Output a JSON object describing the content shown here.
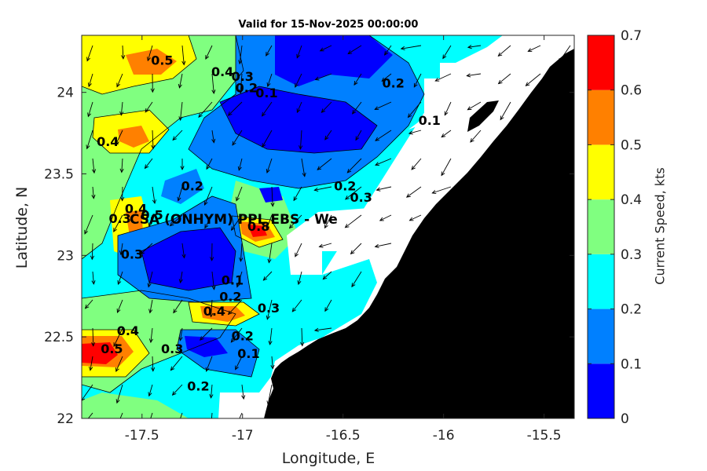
{
  "map": {
    "title": "Valid for 15-Nov-2025 00:00:00",
    "x_label": "Longitude, E",
    "y_label": "Latitude, N",
    "colorbar_label": "Current Speed, kts",
    "site_label": "CSA (ONHYM) PPL EBS - We",
    "lon_range": [
      -17.8,
      -15.35
    ],
    "lat_range": [
      22.0,
      24.35
    ],
    "x_ticks": [
      -17.5,
      -17,
      -16.5,
      -16,
      -15.5
    ],
    "x_tick_labels": [
      "-17.5",
      "-17",
      "-16.5",
      "-16",
      "-15.5"
    ],
    "y_ticks": [
      22,
      22.5,
      23,
      23.5,
      24
    ],
    "y_tick_labels": [
      "22",
      "22.5",
      "23",
      "23.5",
      "24"
    ],
    "colorbar_levels": [
      0,
      0.1,
      0.2,
      0.3,
      0.4,
      0.5,
      0.6,
      0.7
    ],
    "colorbar_tick_labels": [
      "0",
      "0.1",
      "0.2",
      "0.3",
      "0.4",
      "0.5",
      "0.6",
      "0.7"
    ],
    "colorbar_colors": [
      "#0000ff",
      "#0080ff",
      "#00ffff",
      "#80ff80",
      "#ffff00",
      "#ff8000",
      "#ff0000"
    ],
    "land_color": "#000000",
    "contour_labels": [
      {
        "text": "0.5",
        "lon": -17.4,
        "lat": 24.17
      },
      {
        "text": "0.4",
        "lon": -17.1,
        "lat": 24.1
      },
      {
        "text": "0.3",
        "lon": -17.0,
        "lat": 24.07
      },
      {
        "text": "0.2",
        "lon": -16.98,
        "lat": 24.0
      },
      {
        "text": "0.1",
        "lon": -16.88,
        "lat": 23.97
      },
      {
        "text": "0.2",
        "lon": -16.25,
        "lat": 24.03
      },
      {
        "text": "0.1",
        "lon": -16.07,
        "lat": 23.8
      },
      {
        "text": "0.4",
        "lon": -17.67,
        "lat": 23.67
      },
      {
        "text": "0.2",
        "lon": -17.25,
        "lat": 23.4
      },
      {
        "text": "0.2",
        "lon": -16.49,
        "lat": 23.4
      },
      {
        "text": "0.3",
        "lon": -16.41,
        "lat": 23.33
      },
      {
        "text": "0.3",
        "lon": -17.61,
        "lat": 23.2
      },
      {
        "text": "0.4",
        "lon": -17.53,
        "lat": 23.26
      },
      {
        "text": "0.5",
        "lon": -17.45,
        "lat": 23.22
      },
      {
        "text": "0.8",
        "lon": -16.92,
        "lat": 23.15
      },
      {
        "text": "0.3",
        "lon": -17.55,
        "lat": 22.98
      },
      {
        "text": "0.1",
        "lon": -17.05,
        "lat": 22.82
      },
      {
        "text": "0.2",
        "lon": -17.06,
        "lat": 22.72
      },
      {
        "text": "0.4",
        "lon": -17.14,
        "lat": 22.63
      },
      {
        "text": "0.3",
        "lon": -16.87,
        "lat": 22.65
      },
      {
        "text": "0.4",
        "lon": -17.57,
        "lat": 22.51
      },
      {
        "text": "0.5",
        "lon": -17.65,
        "lat": 22.4
      },
      {
        "text": "0.2",
        "lon": -17.0,
        "lat": 22.48
      },
      {
        "text": "0.3",
        "lon": -17.35,
        "lat": 22.4
      },
      {
        "text": "0.1",
        "lon": -16.97,
        "lat": 22.37
      },
      {
        "text": "0.2",
        "lon": -17.22,
        "lat": 22.17
      }
    ]
  }
}
